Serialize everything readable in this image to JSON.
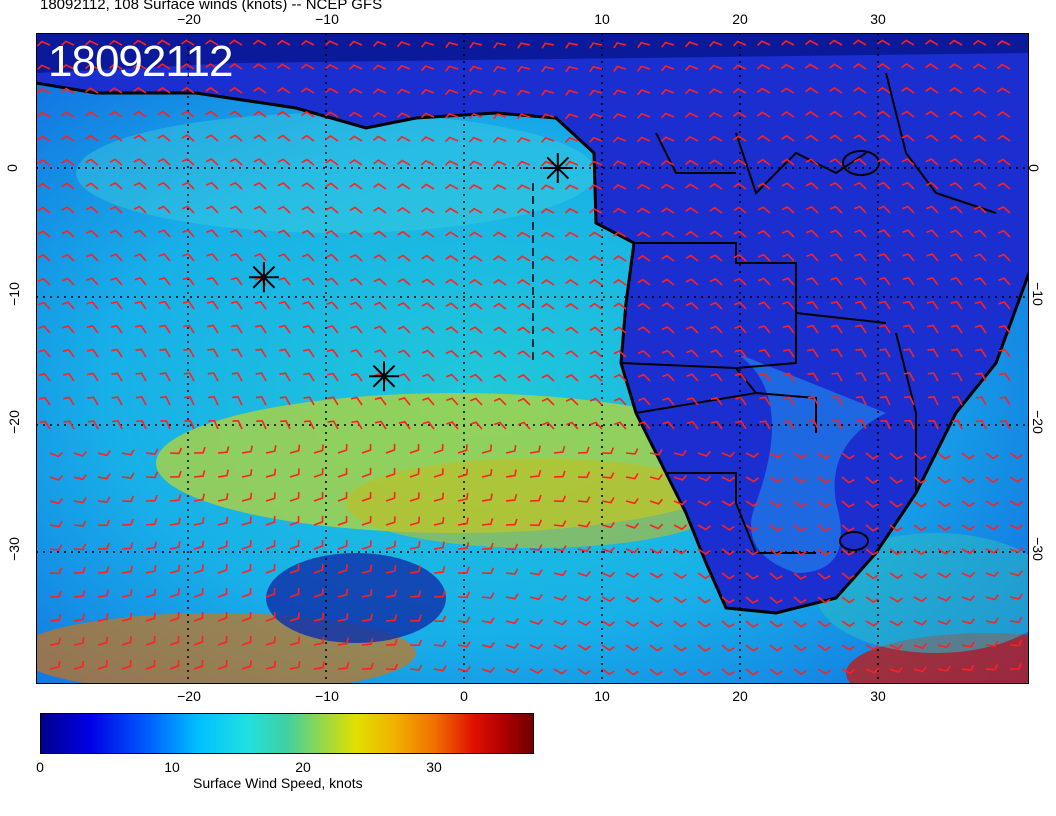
{
  "title": "18092112, 108 Surface winds (knots) -- NCEP GFS",
  "stamp": "18092112",
  "lon_ticks": [
    "−20",
    "−10",
    "0",
    "10",
    "20",
    "30"
  ],
  "lat_ticks": [
    "0",
    "−10",
    "−20",
    "−30"
  ],
  "colorbar": {
    "label": "Surface Wind Speed, knots",
    "ticks": [
      "0",
      "10",
      "20",
      "30"
    ],
    "range": [
      0,
      36
    ]
  },
  "colors": {
    "barbs": "#ff2020",
    "coast": "#000000",
    "stamp_text": "#ffffff"
  },
  "markers": [
    {
      "name": "asterisk",
      "lon": -14.5,
      "lat": -8.5
    },
    {
      "name": "asterisk",
      "lon": -5.8,
      "lat": -16.2
    },
    {
      "name": "asterisk",
      "lon": 6.8,
      "lat": 0
    }
  ]
}
